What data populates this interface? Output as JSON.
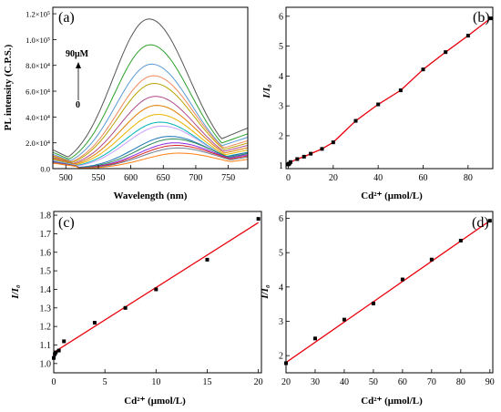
{
  "chart_data": [
    {
      "panel": "(a)",
      "type": "line",
      "xlabel": "Wavelength (nm)",
      "ylabel": "PL intensity (C.P.S.)",
      "xlim": [
        480,
        780
      ],
      "ylim": [
        0,
        125000
      ],
      "xticks": [
        "500",
        "550",
        "600",
        "650",
        "700",
        "750"
      ],
      "yticks": [
        "0.0",
        "2.0×10⁴",
        "4.0×10⁴",
        "6.0×10⁴",
        "8.0×10⁴",
        "1.0×10⁵",
        "1.2×10⁵"
      ],
      "annotation_top": "90μM",
      "annotation_bottom": "0",
      "series": [
        {
          "color": "#555555",
          "peak": 116000,
          "peak_x": 628,
          "tail_end": 35000
        },
        {
          "color": "#2ca02c",
          "peak": 96000,
          "peak_x": 630,
          "tail_end": 30000
        },
        {
          "color": "#5b9bd5",
          "peak": 81000,
          "peak_x": 632,
          "tail_end": 27000
        },
        {
          "color": "#f08a5d",
          "peak": 72000,
          "peak_x": 635,
          "tail_end": 24000
        },
        {
          "color": "#b8a200",
          "peak": 66000,
          "peak_x": 636,
          "tail_end": 22000
        },
        {
          "color": "#b04a8a",
          "peak": 56000,
          "peak_x": 638,
          "tail_end": 20000
        },
        {
          "color": "#e07b00",
          "peak": 49000,
          "peak_x": 640,
          "tail_end": 18000
        },
        {
          "color": "#e8b400",
          "peak": 42000,
          "peak_x": 642,
          "tail_end": 16000
        },
        {
          "color": "#00b3b3",
          "peak": 36000,
          "peak_x": 645,
          "tail_end": 14000
        },
        {
          "color": "#c9a0ff",
          "peak": 33000,
          "peak_x": 648,
          "tail_end": 13000
        },
        {
          "color": "#1f77b4",
          "peak": 25000,
          "peak_x": 660,
          "tail_end": 14000
        },
        {
          "color": "#2e8b57",
          "peak": 23000,
          "peak_x": 665,
          "tail_end": 13000
        },
        {
          "color": "#8a2be2",
          "peak": 20000,
          "peak_x": 668,
          "tail_end": 12000
        },
        {
          "color": "#d62728",
          "peak": 18000,
          "peak_x": 670,
          "tail_end": 11000
        },
        {
          "color": "#708090",
          "peak": 16000,
          "peak_x": 672,
          "tail_end": 10000
        },
        {
          "color": "#ff7f0e",
          "peak": 12000,
          "peak_x": 675,
          "tail_end": 8000
        }
      ]
    },
    {
      "panel": "(b)",
      "type": "scatter",
      "xlabel": "Cd²⁺ (μmol/L)",
      "ylabel": "I/I₀",
      "xlim": [
        -1,
        91
      ],
      "ylim": [
        0.9,
        6.3
      ],
      "xticks": [
        0,
        20,
        40,
        60,
        80
      ],
      "yticks": [
        1,
        2,
        3,
        4,
        5,
        6
      ],
      "fit_color": "#e8000b",
      "x": [
        0,
        0.2,
        0.5,
        1,
        4,
        7,
        10,
        15,
        20,
        30,
        40,
        50,
        60,
        70,
        80,
        90
      ],
      "y": [
        1.04,
        1.06,
        1.07,
        1.12,
        1.22,
        1.3,
        1.4,
        1.56,
        1.78,
        2.5,
        3.05,
        3.52,
        4.22,
        4.8,
        5.35,
        5.93
      ]
    },
    {
      "panel": "(c)",
      "type": "scatter",
      "xlabel": "Cd²⁺ (μmol/L)",
      "ylabel": "I/I₀",
      "xlim": [
        0,
        20.3
      ],
      "ylim": [
        0.95,
        1.82
      ],
      "xticks": [
        0,
        5,
        10,
        15,
        20
      ],
      "yticks": [
        "1.0",
        "1.1",
        "1.2",
        "1.3",
        "1.4",
        "1.5",
        "1.6",
        "1.7",
        "1.8"
      ],
      "fit_color": "#e8000b",
      "fit": {
        "x0": 0,
        "y0": 1.06,
        "x1": 20,
        "y1": 1.76
      },
      "x": [
        0,
        0.1,
        0.2,
        0.5,
        1,
        4,
        7,
        10,
        15,
        20
      ],
      "y": [
        1.03,
        1.05,
        1.06,
        1.07,
        1.12,
        1.22,
        1.3,
        1.4,
        1.56,
        1.78
      ]
    },
    {
      "panel": "(d)",
      "type": "scatter",
      "xlabel": "Cd²⁺ (μmol/L)",
      "ylabel": "I/I₀",
      "xlim": [
        20,
        91
      ],
      "ylim": [
        1.5,
        6.2
      ],
      "xticks": [
        20,
        30,
        40,
        50,
        60,
        70,
        80,
        90
      ],
      "yticks": [
        2,
        3,
        4,
        5,
        6
      ],
      "fit_color": "#e8000b",
      "fit": {
        "x0": 20,
        "y0": 1.8,
        "x1": 90,
        "y1": 5.93
      },
      "x": [
        20,
        30,
        40,
        50,
        60,
        70,
        80,
        90
      ],
      "y": [
        1.78,
        2.5,
        3.05,
        3.52,
        4.22,
        4.8,
        5.35,
        5.93
      ]
    }
  ]
}
